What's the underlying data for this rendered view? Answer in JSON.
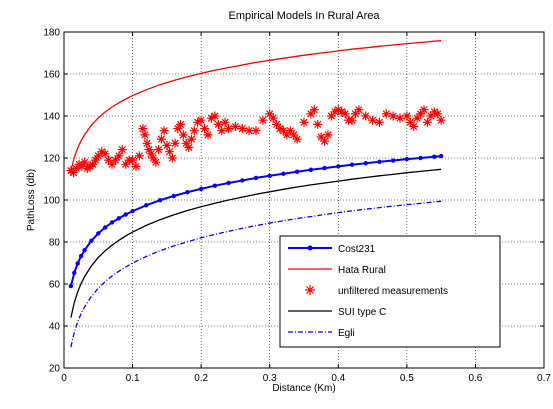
{
  "chart_data": {
    "type": "line",
    "title": "Empirical Models In Rural Area",
    "xlabel": "Distance (Km)",
    "ylabel": "PathLoss (db)",
    "xlim": [
      0,
      0.7
    ],
    "ylim": [
      20,
      180
    ],
    "xticks": [
      0,
      0.1,
      0.2,
      0.3,
      0.4,
      0.5,
      0.6,
      0.7
    ],
    "yticks": [
      20,
      40,
      60,
      80,
      100,
      120,
      140,
      160,
      180
    ],
    "grid": true,
    "legend_position": "bottom-right",
    "series": [
      {
        "name": "Cost231",
        "style": "solid-dots",
        "color": "#0000ff",
        "x": [
          0.01,
          0.015,
          0.02,
          0.025,
          0.03,
          0.04,
          0.05,
          0.06,
          0.07,
          0.08,
          0.09,
          0.1,
          0.12,
          0.14,
          0.16,
          0.18,
          0.2,
          0.22,
          0.24,
          0.26,
          0.28,
          0.3,
          0.32,
          0.34,
          0.36,
          0.38,
          0.4,
          0.42,
          0.44,
          0.46,
          0.48,
          0.5,
          0.52,
          0.54,
          0.55
        ],
        "y": [
          59.0,
          65.3,
          69.8,
          73.3,
          76.1,
          80.6,
          84.1,
          86.9,
          89.3,
          91.3,
          93.1,
          94.7,
          97.5,
          99.9,
          101.9,
          103.7,
          105.3,
          106.8,
          108.1,
          109.3,
          110.5,
          111.5,
          112.5,
          113.5,
          114.4,
          115.2,
          116.0,
          116.8,
          117.5,
          118.2,
          118.8,
          119.5,
          120.0,
          120.6,
          120.9
        ]
      },
      {
        "name": "Hata Rural",
        "style": "solid",
        "color": "#ff0000",
        "x": [
          0.01,
          0.015,
          0.02,
          0.025,
          0.03,
          0.04,
          0.05,
          0.06,
          0.07,
          0.08,
          0.09,
          0.1,
          0.12,
          0.14,
          0.16,
          0.18,
          0.2,
          0.22,
          0.24,
          0.26,
          0.28,
          0.3,
          0.32,
          0.34,
          0.36,
          0.38,
          0.4,
          0.42,
          0.44,
          0.46,
          0.48,
          0.5,
          0.52,
          0.54,
          0.55
        ],
        "y": [
          114.0,
          120.3,
          124.8,
          128.3,
          131.1,
          135.6,
          139.1,
          141.9,
          144.3,
          146.3,
          148.1,
          149.7,
          152.5,
          154.9,
          156.9,
          158.7,
          160.3,
          161.8,
          163.1,
          164.3,
          165.5,
          166.5,
          167.5,
          168.5,
          169.4,
          170.2,
          171.0,
          171.8,
          172.5,
          173.2,
          173.8,
          174.5,
          175.0,
          175.6,
          175.9
        ]
      },
      {
        "name": "unfiltered measurements",
        "style": "star-markers",
        "color": "#ff0000",
        "x": [
          0.01,
          0.014,
          0.018,
          0.022,
          0.026,
          0.03,
          0.034,
          0.038,
          0.042,
          0.046,
          0.05,
          0.055,
          0.06,
          0.065,
          0.07,
          0.075,
          0.08,
          0.085,
          0.09,
          0.095,
          0.1,
          0.105,
          0.11,
          0.115,
          0.118,
          0.121,
          0.124,
          0.127,
          0.13,
          0.134,
          0.138,
          0.142,
          0.146,
          0.15,
          0.154,
          0.158,
          0.162,
          0.166,
          0.17,
          0.174,
          0.178,
          0.182,
          0.186,
          0.19,
          0.195,
          0.2,
          0.205,
          0.21,
          0.215,
          0.22,
          0.225,
          0.23,
          0.235,
          0.24,
          0.25,
          0.26,
          0.27,
          0.28,
          0.29,
          0.3,
          0.305,
          0.31,
          0.315,
          0.32,
          0.325,
          0.33,
          0.335,
          0.34,
          0.35,
          0.36,
          0.365,
          0.37,
          0.375,
          0.38,
          0.385,
          0.39,
          0.395,
          0.4,
          0.405,
          0.41,
          0.415,
          0.42,
          0.425,
          0.43,
          0.44,
          0.45,
          0.46,
          0.47,
          0.48,
          0.49,
          0.5,
          0.505,
          0.51,
          0.515,
          0.52,
          0.525,
          0.53,
          0.535,
          0.54,
          0.545,
          0.55
        ],
        "y": [
          114,
          113,
          115,
          117,
          116,
          118,
          115,
          116,
          117,
          119,
          121,
          123,
          122,
          119,
          117,
          119,
          121,
          124,
          117,
          119,
          119,
          116,
          121,
          134,
          131,
          127,
          124,
          122,
          120,
          118,
          124,
          129,
          133,
          126,
          123,
          120,
          127,
          134,
          136,
          131,
          127,
          125,
          129,
          133,
          137,
          138,
          134,
          131,
          139,
          140,
          136,
          133,
          137,
          134,
          135,
          134,
          133,
          133,
          138,
          141,
          139,
          136,
          134,
          133,
          131,
          133,
          131,
          129,
          137,
          141,
          143,
          136,
          130,
          128,
          131,
          140,
          142,
          143,
          142,
          141,
          138,
          138,
          141,
          143,
          140,
          138,
          137,
          141,
          140,
          139,
          140,
          137,
          135,
          139,
          141,
          143,
          137,
          140,
          142,
          141,
          138
        ]
      },
      {
        "name": "SUI type C",
        "style": "solid",
        "color": "#000000",
        "x": [
          0.01,
          0.015,
          0.02,
          0.025,
          0.03,
          0.04,
          0.05,
          0.06,
          0.07,
          0.08,
          0.09,
          0.1,
          0.12,
          0.14,
          0.16,
          0.18,
          0.2,
          0.22,
          0.24,
          0.26,
          0.28,
          0.3,
          0.32,
          0.34,
          0.36,
          0.38,
          0.4,
          0.42,
          0.44,
          0.46,
          0.48,
          0.5,
          0.52,
          0.54,
          0.55
        ],
        "y": [
          44.0,
          51.2,
          56.3,
          60.3,
          63.5,
          68.6,
          72.6,
          75.8,
          78.5,
          80.8,
          82.9,
          84.7,
          87.9,
          90.6,
          92.9,
          95.0,
          96.8,
          98.5,
          100.0,
          101.4,
          102.7,
          103.9,
          105.1,
          106.2,
          107.2,
          108.1,
          109.0,
          109.9,
          110.7,
          111.5,
          112.2,
          113.0,
          113.6,
          114.3,
          114.6
        ]
      },
      {
        "name": "Egli",
        "style": "dash-dot",
        "color": "#0000ff",
        "x": [
          0.01,
          0.015,
          0.02,
          0.025,
          0.03,
          0.04,
          0.05,
          0.06,
          0.07,
          0.08,
          0.09,
          0.1,
          0.12,
          0.14,
          0.16,
          0.18,
          0.2,
          0.22,
          0.24,
          0.26,
          0.28,
          0.3,
          0.32,
          0.34,
          0.36,
          0.38,
          0.4,
          0.42,
          0.44,
          0.46,
          0.48,
          0.5,
          0.52,
          0.54,
          0.55
        ],
        "y": [
          30.0,
          37.0,
          42.0,
          45.9,
          49.1,
          54.1,
          58.0,
          61.1,
          63.8,
          66.1,
          68.1,
          70.0,
          73.1,
          75.8,
          78.1,
          80.1,
          82.0,
          83.6,
          85.1,
          86.5,
          87.8,
          89.0,
          90.1,
          91.2,
          92.1,
          93.1,
          94.0,
          94.8,
          95.6,
          96.4,
          97.1,
          97.8,
          98.4,
          99.1,
          99.4
        ]
      }
    ]
  }
}
